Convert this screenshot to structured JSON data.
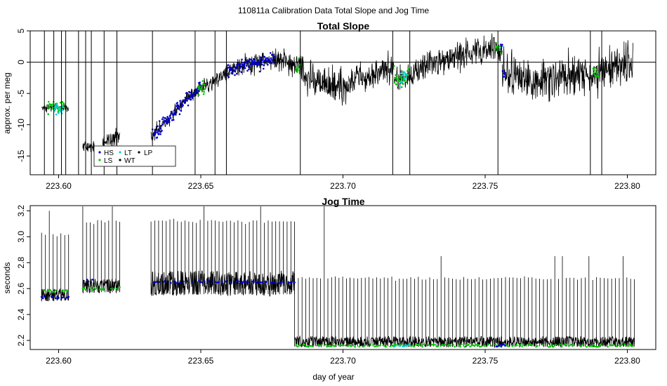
{
  "figure": {
    "main_title": "110811a   Calibration Data Total Slope and Jog Time",
    "xlabel": "day of year"
  },
  "colors": {
    "HS": "#0000cc",
    "LS": "#00c800",
    "LT": "#00d2d2",
    "WT": "#000000",
    "LP": "#000000",
    "trace": "#000000"
  },
  "chart_data": [
    {
      "type": "line",
      "title": "Total Slope",
      "xlabel": "",
      "ylabel": "approx. per meg",
      "xlim": [
        223.59,
        223.81
      ],
      "ylim": [
        -18,
        5
      ],
      "x_ticks": [
        223.6,
        223.65,
        223.7,
        223.75,
        223.8
      ],
      "x_tick_labels": [
        "223.60",
        "223.65",
        "223.70",
        "223.75",
        "223.80"
      ],
      "y_ticks": [
        5,
        0,
        -5,
        -10,
        -15
      ],
      "y_tick_labels": [
        "5",
        "0",
        "-5",
        "-10",
        "-15"
      ],
      "reference_line": 0,
      "legend": {
        "placement": "bottom-left",
        "entries": [
          {
            "label": "HS",
            "color_key": "HS"
          },
          {
            "label": "LT",
            "color_key": "LT"
          },
          {
            "label": "LP",
            "color_key": "LP"
          },
          {
            "label": "LS",
            "color_key": "LS"
          },
          {
            "label": "WT",
            "color_key": "WT"
          }
        ]
      },
      "segments": [
        {
          "x_start": 223.594,
          "x_end": 223.6035,
          "level": -7.3,
          "noise": 0.6,
          "trend": 0
        },
        {
          "x_start": 223.6085,
          "x_end": 223.6125,
          "level": -13.5,
          "noise": 1.0,
          "trend": 0
        },
        {
          "x_start": 223.6155,
          "x_end": 223.6215,
          "level": -13.0,
          "noise": 1.2,
          "trend": 1.5
        },
        {
          "x_start": 223.6325,
          "x_end": 223.6455,
          "level": -12.0,
          "noise": 1.2,
          "trend": 6.5
        },
        {
          "x_start": 223.6455,
          "x_end": 223.66,
          "level": -5.5,
          "noise": 1.3,
          "trend": 4.0
        },
        {
          "x_start": 223.66,
          "x_end": 223.676,
          "level": -1.0,
          "noise": 1.5,
          "trend": 1.5
        },
        {
          "x_start": 223.676,
          "x_end": 223.686,
          "level": 0.5,
          "noise": 2.2,
          "trend": -1.5
        },
        {
          "x_start": 223.686,
          "x_end": 223.702,
          "level": -2.5,
          "noise": 2.5,
          "trend": -2.0
        },
        {
          "x_start": 223.702,
          "x_end": 223.718,
          "level": -3.0,
          "noise": 2.2,
          "trend": 2.0
        },
        {
          "x_start": 223.718,
          "x_end": 223.728,
          "level": -3.5,
          "noise": 2.0,
          "trend": 3.0
        },
        {
          "x_start": 223.728,
          "x_end": 223.756,
          "level": -0.5,
          "noise": 2.0,
          "trend": 3.0
        },
        {
          "x_start": 223.756,
          "x_end": 223.77,
          "level": -1.5,
          "noise": 2.8,
          "trend": -2.0
        },
        {
          "x_start": 223.77,
          "x_end": 223.785,
          "level": -3.0,
          "noise": 3.0,
          "trend": 1.5
        },
        {
          "x_start": 223.785,
          "x_end": 223.802,
          "level": -2.0,
          "noise": 3.2,
          "trend": 2.0
        }
      ],
      "spikes": [
        223.595,
        223.5983,
        223.601,
        223.6025,
        223.607,
        223.6095,
        223.6115,
        223.616,
        223.6205,
        223.633,
        223.648,
        223.655,
        223.659,
        223.685,
        223.7175,
        223.7235,
        223.7545,
        223.787,
        223.791
      ],
      "colored_runs": [
        {
          "x_start": 223.596,
          "x_end": 223.602,
          "color_key": "LS",
          "level": -7.3
        },
        {
          "x_start": 223.5985,
          "x_end": 223.6015,
          "color_key": "LT",
          "level": -7.6
        },
        {
          "x_start": 223.633,
          "x_end": 223.65,
          "color_key": "HS",
          "level": -8.0
        },
        {
          "x_start": 223.649,
          "x_end": 223.6515,
          "color_key": "LS",
          "level": -3.5
        },
        {
          "x_start": 223.659,
          "x_end": 223.676,
          "color_key": "HS",
          "level": 0.5
        },
        {
          "x_start": 223.6835,
          "x_end": 223.685,
          "color_key": "LS",
          "level": 0.0
        },
        {
          "x_start": 223.718,
          "x_end": 223.723,
          "color_key": "LS",
          "level": -2.5
        },
        {
          "x_start": 223.72,
          "x_end": 223.7225,
          "color_key": "LT",
          "level": -3.5
        },
        {
          "x_start": 223.7535,
          "x_end": 223.7555,
          "color_key": "LS",
          "level": 2.3
        },
        {
          "x_start": 223.7555,
          "x_end": 223.757,
          "color_key": "HS",
          "level": 0.5
        },
        {
          "x_start": 223.788,
          "x_end": 223.79,
          "color_key": "LS",
          "level": -2.5
        }
      ]
    },
    {
      "type": "line",
      "title": "Jog Time",
      "xlabel": "day of year",
      "ylabel": "seconds",
      "xlim": [
        223.59,
        223.81
      ],
      "ylim": [
        2.13,
        3.24
      ],
      "x_ticks": [
        223.6,
        223.65,
        223.7,
        223.75,
        223.8
      ],
      "x_tick_labels": [
        "223.60",
        "223.65",
        "223.70",
        "223.75",
        "223.80"
      ],
      "y_ticks": [
        2.2,
        2.4,
        2.6,
        2.8,
        3.0,
        3.2
      ],
      "y_tick_labels": [
        "2.2",
        "2.4",
        "2.6",
        "2.8",
        "3.0",
        "3.2"
      ],
      "segments": [
        {
          "x_start": 223.594,
          "x_end": 223.6035,
          "base": 2.55,
          "band": 0.07,
          "peak": 3.02,
          "high_peak": 3.2
        },
        {
          "x_start": 223.6085,
          "x_end": 223.6215,
          "base": 2.62,
          "band": 0.08,
          "peak": 3.12,
          "high_peak": 3.24
        },
        {
          "x_start": 223.6325,
          "x_end": 223.683,
          "base": 2.64,
          "band": 0.14,
          "peak": 3.12,
          "high_peak": 3.24
        },
        {
          "x_start": 223.683,
          "x_end": 223.7025,
          "base": 2.19,
          "band": 0.06,
          "peak": 2.68,
          "high_peak": 3.24
        },
        {
          "x_start": 223.7025,
          "x_end": 223.8025,
          "base": 2.19,
          "band": 0.06,
          "peak": 2.68,
          "high_peak": 2.85
        }
      ],
      "colored_runs": [
        {
          "x_start": 223.594,
          "x_end": 223.6035,
          "color_key": "HS",
          "level": 2.53
        },
        {
          "x_start": 223.595,
          "x_end": 223.603,
          "color_key": "LS",
          "level": 2.58
        },
        {
          "x_start": 223.6085,
          "x_end": 223.613,
          "color_key": "HS",
          "level": 2.66
        },
        {
          "x_start": 223.6085,
          "x_end": 223.6215,
          "color_key": "LS",
          "level": 2.6
        },
        {
          "x_start": 223.633,
          "x_end": 223.683,
          "color_key": "HS",
          "level": 2.65
        },
        {
          "x_start": 223.6835,
          "x_end": 223.802,
          "color_key": "LS",
          "level": 2.16
        },
        {
          "x_start": 223.718,
          "x_end": 223.7235,
          "color_key": "LT",
          "level": 2.16
        },
        {
          "x_start": 223.7535,
          "x_end": 223.757,
          "color_key": "HS",
          "level": 2.16
        }
      ]
    }
  ]
}
